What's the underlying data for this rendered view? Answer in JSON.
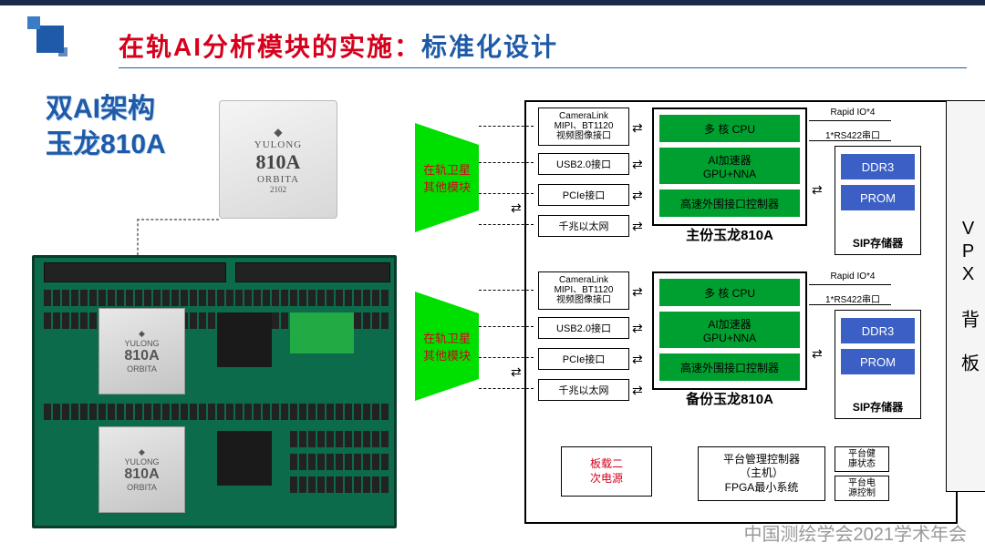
{
  "page": {
    "title_red": "在轨AI分析模块的实施：",
    "title_blue": "标准化设计",
    "subtitle_l1": "双AI架构",
    "subtitle_l2": "玉龙810A",
    "watermark": "中国测绘学会2021学术年会"
  },
  "chip": {
    "brand": "YULONG",
    "model": "810A",
    "orbita": "ORBITA",
    "code": "2102"
  },
  "diagram": {
    "green_trap": "在轨卫星\n其他模块",
    "interfaces": {
      "cam": "CameraLink\nMIPI、BT1120\n视频图像接口",
      "usb": "USB2.0接口",
      "pcie": "PCIe接口",
      "eth": "千兆以太网"
    },
    "proc": {
      "cpu": "多 核 CPU",
      "ai": "AI加速器\nGPU+NNA",
      "io": "高速外围接口控制器",
      "main_title": "主份玉龙810A",
      "back_title": "备份玉龙810A"
    },
    "signals": {
      "rapid": "Rapid IO*4",
      "rs422": "1*RS422串口"
    },
    "mem": {
      "ddr": "DDR3",
      "prom": "PROM",
      "title": "SIP存储器"
    },
    "vpx": "VPX 背 板",
    "power": "板载二\n次电源",
    "mgmt": "平台管理控制器\n（主机）\nFPGA最小系统",
    "health": "平台健\n康状态",
    "pwrctrl": "平台电\n源控制"
  },
  "colors": {
    "title_red": "#d6001c",
    "title_blue": "#1e5aa8",
    "proc_green": "#00a030",
    "bright_green": "#00e000",
    "mem_blue": "#3b5fc4",
    "pcb_green": "#0b6b4a"
  }
}
